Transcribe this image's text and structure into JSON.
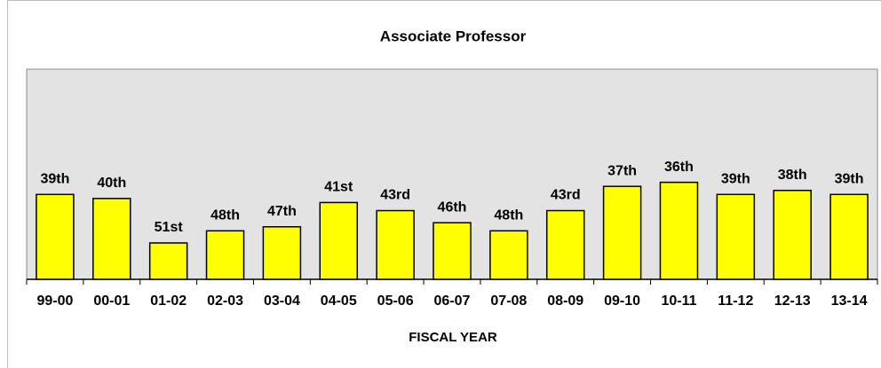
{
  "chart_data": {
    "type": "bar",
    "title": "Associate Professor",
    "x_label": "FISCAL YEAR",
    "categories": [
      "99-00",
      "00-01",
      "01-02",
      "02-03",
      "03-04",
      "04-05",
      "05-06",
      "06-07",
      "07-08",
      "08-09",
      "09-10",
      "10-11",
      "11-12",
      "12-13",
      "13-14"
    ],
    "values": [
      39,
      40,
      51,
      48,
      47,
      41,
      43,
      46,
      48,
      43,
      37,
      36,
      39,
      38,
      39
    ],
    "value_labels": [
      "39th",
      "40th",
      "51st",
      "48th",
      "47th",
      "41st",
      "43rd",
      "46th",
      "48th",
      "43rd",
      "37th",
      "36th",
      "39th",
      "38th",
      "39th"
    ],
    "color": "#ffff00",
    "ylim": [
      60,
      8
    ]
  }
}
